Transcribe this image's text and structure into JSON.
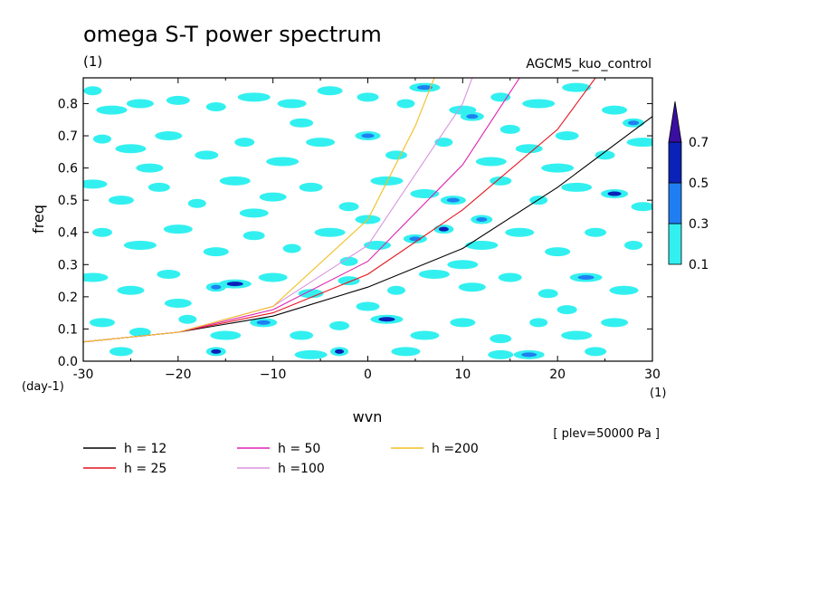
{
  "chart_data": {
    "type": "contour",
    "title": "omega S-T power spectrum",
    "subtitle": "(1)",
    "run_label": "AGCM5_kuo_control",
    "xlabel": "wvn",
    "ylabel": "freq",
    "x_unit": "(1)",
    "y_unit": "(day-1)",
    "xlim": [
      -30,
      30
    ],
    "ylim": [
      0.0,
      0.88
    ],
    "x_ticks": [
      -30,
      -20,
      -10,
      0,
      10,
      20,
      30
    ],
    "x_tick_labels": [
      "-30",
      "−20",
      "−10",
      "0",
      "10",
      "20",
      "30"
    ],
    "y_ticks": [
      0.0,
      0.1,
      0.2,
      0.3,
      0.4,
      0.5,
      0.6,
      0.7,
      0.8
    ],
    "y_tick_labels": [
      "0.0",
      "0.1",
      "0.2",
      "0.3",
      "0.4",
      "0.5",
      "0.6",
      "0.7",
      "0.8"
    ],
    "footnote": "[ plev=50000 Pa ]",
    "colorbar": {
      "labels": [
        "0.1",
        "0.3",
        "0.5",
        "0.7"
      ],
      "levels": [
        0.1,
        0.3,
        0.5,
        0.7
      ],
      "colors": [
        "#33f0f0",
        "#1f7ff2",
        "#0b22b8",
        "#3a0ea0"
      ]
    },
    "legend": [
      {
        "label": "h = 12",
        "h": 12,
        "color": "#000000"
      },
      {
        "label": "h = 25",
        "h": 25,
        "color": "#e4141e"
      },
      {
        "label": "h = 50",
        "h": 50,
        "color": "#e020b0"
      },
      {
        "label": "h =100",
        "h": 100,
        "color": "#da94e0"
      },
      {
        "label": "h =200",
        "h": 200,
        "color": "#f0c020"
      }
    ],
    "dispersion_curves": [
      {
        "h": 12,
        "x": [
          -30,
          -20,
          -10,
          0,
          10,
          20,
          30
        ],
        "y": [
          0.06,
          0.09,
          0.14,
          0.23,
          0.35,
          0.54,
          0.76
        ]
      },
      {
        "h": 25,
        "x": [
          -30,
          -20,
          -10,
          0,
          10,
          20,
          24
        ],
        "y": [
          0.06,
          0.09,
          0.15,
          0.27,
          0.47,
          0.72,
          0.88
        ]
      },
      {
        "h": 50,
        "x": [
          -30,
          -20,
          -10,
          0,
          10,
          16
        ],
        "y": [
          0.06,
          0.09,
          0.16,
          0.31,
          0.61,
          0.88
        ]
      },
      {
        "h": 100,
        "x": [
          -30,
          -20,
          -10,
          0,
          10,
          11
        ],
        "y": [
          0.06,
          0.09,
          0.17,
          0.36,
          0.8,
          0.88
        ]
      },
      {
        "h": 200,
        "x": [
          -30,
          -20,
          -10,
          0,
          5,
          7
        ],
        "y": [
          0.06,
          0.09,
          0.17,
          0.44,
          0.73,
          0.88
        ]
      }
    ],
    "contour_blobs": [
      {
        "x": -29,
        "y": 0.84,
        "v": 0.1
      },
      {
        "x": -27,
        "y": 0.78,
        "v": 0.1
      },
      {
        "x": -24,
        "y": 0.8,
        "v": 0.1
      },
      {
        "x": -20,
        "y": 0.81,
        "v": 0.1
      },
      {
        "x": -16,
        "y": 0.79,
        "v": 0.1
      },
      {
        "x": -12,
        "y": 0.82,
        "v": 0.1
      },
      {
        "x": -8,
        "y": 0.8,
        "v": 0.1
      },
      {
        "x": -4,
        "y": 0.84,
        "v": 0.1
      },
      {
        "x": 0,
        "y": 0.82,
        "v": 0.1
      },
      {
        "x": 4,
        "y": 0.8,
        "v": 0.1
      },
      {
        "x": 6,
        "y": 0.85,
        "v": 0.3
      },
      {
        "x": 10,
        "y": 0.78,
        "v": 0.1
      },
      {
        "x": 11,
        "y": 0.76,
        "v": 0.3
      },
      {
        "x": 14,
        "y": 0.82,
        "v": 0.1
      },
      {
        "x": 18,
        "y": 0.8,
        "v": 0.1
      },
      {
        "x": 22,
        "y": 0.85,
        "v": 0.1
      },
      {
        "x": 26,
        "y": 0.78,
        "v": 0.1
      },
      {
        "x": 28,
        "y": 0.74,
        "v": 0.3
      },
      {
        "x": -28,
        "y": 0.69,
        "v": 0.1
      },
      {
        "x": -25,
        "y": 0.66,
        "v": 0.1
      },
      {
        "x": -21,
        "y": 0.7,
        "v": 0.1
      },
      {
        "x": -17,
        "y": 0.64,
        "v": 0.1
      },
      {
        "x": -13,
        "y": 0.68,
        "v": 0.1
      },
      {
        "x": -9,
        "y": 0.62,
        "v": 0.1
      },
      {
        "x": -5,
        "y": 0.68,
        "v": 0.1
      },
      {
        "x": 0,
        "y": 0.7,
        "v": 0.3
      },
      {
        "x": 3,
        "y": 0.64,
        "v": 0.1
      },
      {
        "x": 8,
        "y": 0.68,
        "v": 0.1
      },
      {
        "x": 13,
        "y": 0.62,
        "v": 0.1
      },
      {
        "x": 17,
        "y": 0.66,
        "v": 0.1
      },
      {
        "x": 21,
        "y": 0.7,
        "v": 0.1
      },
      {
        "x": 25,
        "y": 0.64,
        "v": 0.1
      },
      {
        "x": 29,
        "y": 0.68,
        "v": 0.1
      },
      {
        "x": -29,
        "y": 0.55,
        "v": 0.1
      },
      {
        "x": -26,
        "y": 0.5,
        "v": 0.1
      },
      {
        "x": -22,
        "y": 0.54,
        "v": 0.1
      },
      {
        "x": -18,
        "y": 0.49,
        "v": 0.1
      },
      {
        "x": -14,
        "y": 0.56,
        "v": 0.1
      },
      {
        "x": -10,
        "y": 0.51,
        "v": 0.1
      },
      {
        "x": -6,
        "y": 0.54,
        "v": 0.1
      },
      {
        "x": -2,
        "y": 0.48,
        "v": 0.1
      },
      {
        "x": 2,
        "y": 0.56,
        "v": 0.1
      },
      {
        "x": 6,
        "y": 0.52,
        "v": 0.1
      },
      {
        "x": 9,
        "y": 0.5,
        "v": 0.3
      },
      {
        "x": 14,
        "y": 0.56,
        "v": 0.1
      },
      {
        "x": 18,
        "y": 0.5,
        "v": 0.1
      },
      {
        "x": 22,
        "y": 0.54,
        "v": 0.1
      },
      {
        "x": 26,
        "y": 0.52,
        "v": 0.5
      },
      {
        "x": 29,
        "y": 0.48,
        "v": 0.1
      },
      {
        "x": -28,
        "y": 0.4,
        "v": 0.1
      },
      {
        "x": -24,
        "y": 0.36,
        "v": 0.1
      },
      {
        "x": -20,
        "y": 0.41,
        "v": 0.1
      },
      {
        "x": -16,
        "y": 0.34,
        "v": 0.1
      },
      {
        "x": -12,
        "y": 0.39,
        "v": 0.1
      },
      {
        "x": -8,
        "y": 0.35,
        "v": 0.1
      },
      {
        "x": -4,
        "y": 0.4,
        "v": 0.1
      },
      {
        "x": 1,
        "y": 0.36,
        "v": 0.1
      },
      {
        "x": 5,
        "y": 0.38,
        "v": 0.3
      },
      {
        "x": 8,
        "y": 0.41,
        "v": 0.5
      },
      {
        "x": 12,
        "y": 0.36,
        "v": 0.1
      },
      {
        "x": 16,
        "y": 0.4,
        "v": 0.1
      },
      {
        "x": 20,
        "y": 0.34,
        "v": 0.1
      },
      {
        "x": 24,
        "y": 0.4,
        "v": 0.1
      },
      {
        "x": 28,
        "y": 0.36,
        "v": 0.1
      },
      {
        "x": -29,
        "y": 0.26,
        "v": 0.1
      },
      {
        "x": -25,
        "y": 0.22,
        "v": 0.1
      },
      {
        "x": -21,
        "y": 0.27,
        "v": 0.1
      },
      {
        "x": -16,
        "y": 0.23,
        "v": 0.3
      },
      {
        "x": -14,
        "y": 0.24,
        "v": 0.5
      },
      {
        "x": -10,
        "y": 0.26,
        "v": 0.1
      },
      {
        "x": -6,
        "y": 0.21,
        "v": 0.1
      },
      {
        "x": -2,
        "y": 0.25,
        "v": 0.1
      },
      {
        "x": 3,
        "y": 0.22,
        "v": 0.1
      },
      {
        "x": 7,
        "y": 0.27,
        "v": 0.1
      },
      {
        "x": 11,
        "y": 0.23,
        "v": 0.1
      },
      {
        "x": 15,
        "y": 0.26,
        "v": 0.1
      },
      {
        "x": 19,
        "y": 0.21,
        "v": 0.1
      },
      {
        "x": 23,
        "y": 0.26,
        "v": 0.3
      },
      {
        "x": 27,
        "y": 0.22,
        "v": 0.1
      },
      {
        "x": -28,
        "y": 0.12,
        "v": 0.1
      },
      {
        "x": -24,
        "y": 0.09,
        "v": 0.1
      },
      {
        "x": -19,
        "y": 0.13,
        "v": 0.1
      },
      {
        "x": -15,
        "y": 0.08,
        "v": 0.1
      },
      {
        "x": -11,
        "y": 0.12,
        "v": 0.3
      },
      {
        "x": -7,
        "y": 0.08,
        "v": 0.1
      },
      {
        "x": -3,
        "y": 0.11,
        "v": 0.1
      },
      {
        "x": 2,
        "y": 0.13,
        "v": 0.5
      },
      {
        "x": 6,
        "y": 0.08,
        "v": 0.1
      },
      {
        "x": 10,
        "y": 0.12,
        "v": 0.1
      },
      {
        "x": 14,
        "y": 0.07,
        "v": 0.1
      },
      {
        "x": 18,
        "y": 0.12,
        "v": 0.1
      },
      {
        "x": 22,
        "y": 0.08,
        "v": 0.1
      },
      {
        "x": 26,
        "y": 0.12,
        "v": 0.1
      },
      {
        "x": -26,
        "y": 0.03,
        "v": 0.1
      },
      {
        "x": -16,
        "y": 0.03,
        "v": 0.5
      },
      {
        "x": -6,
        "y": 0.02,
        "v": 0.1
      },
      {
        "x": 4,
        "y": 0.03,
        "v": 0.1
      },
      {
        "x": 14,
        "y": 0.02,
        "v": 0.1
      },
      {
        "x": 24,
        "y": 0.03,
        "v": 0.1
      },
      {
        "x": -3,
        "y": 0.03,
        "v": 0.5
      },
      {
        "x": 17,
        "y": 0.02,
        "v": 0.3
      },
      {
        "x": -23,
        "y": 0.6,
        "v": 0.1
      },
      {
        "x": -7,
        "y": 0.74,
        "v": 0.1
      },
      {
        "x": 15,
        "y": 0.72,
        "v": 0.1
      },
      {
        "x": 20,
        "y": 0.6,
        "v": 0.1
      },
      {
        "x": -12,
        "y": 0.46,
        "v": 0.1
      },
      {
        "x": 0,
        "y": 0.44,
        "v": 0.1
      },
      {
        "x": 12,
        "y": 0.44,
        "v": 0.3
      },
      {
        "x": -2,
        "y": 0.31,
        "v": 0.1
      },
      {
        "x": 10,
        "y": 0.3,
        "v": 0.1
      },
      {
        "x": -20,
        "y": 0.18,
        "v": 0.1
      },
      {
        "x": 0,
        "y": 0.17,
        "v": 0.1
      },
      {
        "x": 21,
        "y": 0.16,
        "v": 0.1
      }
    ]
  }
}
